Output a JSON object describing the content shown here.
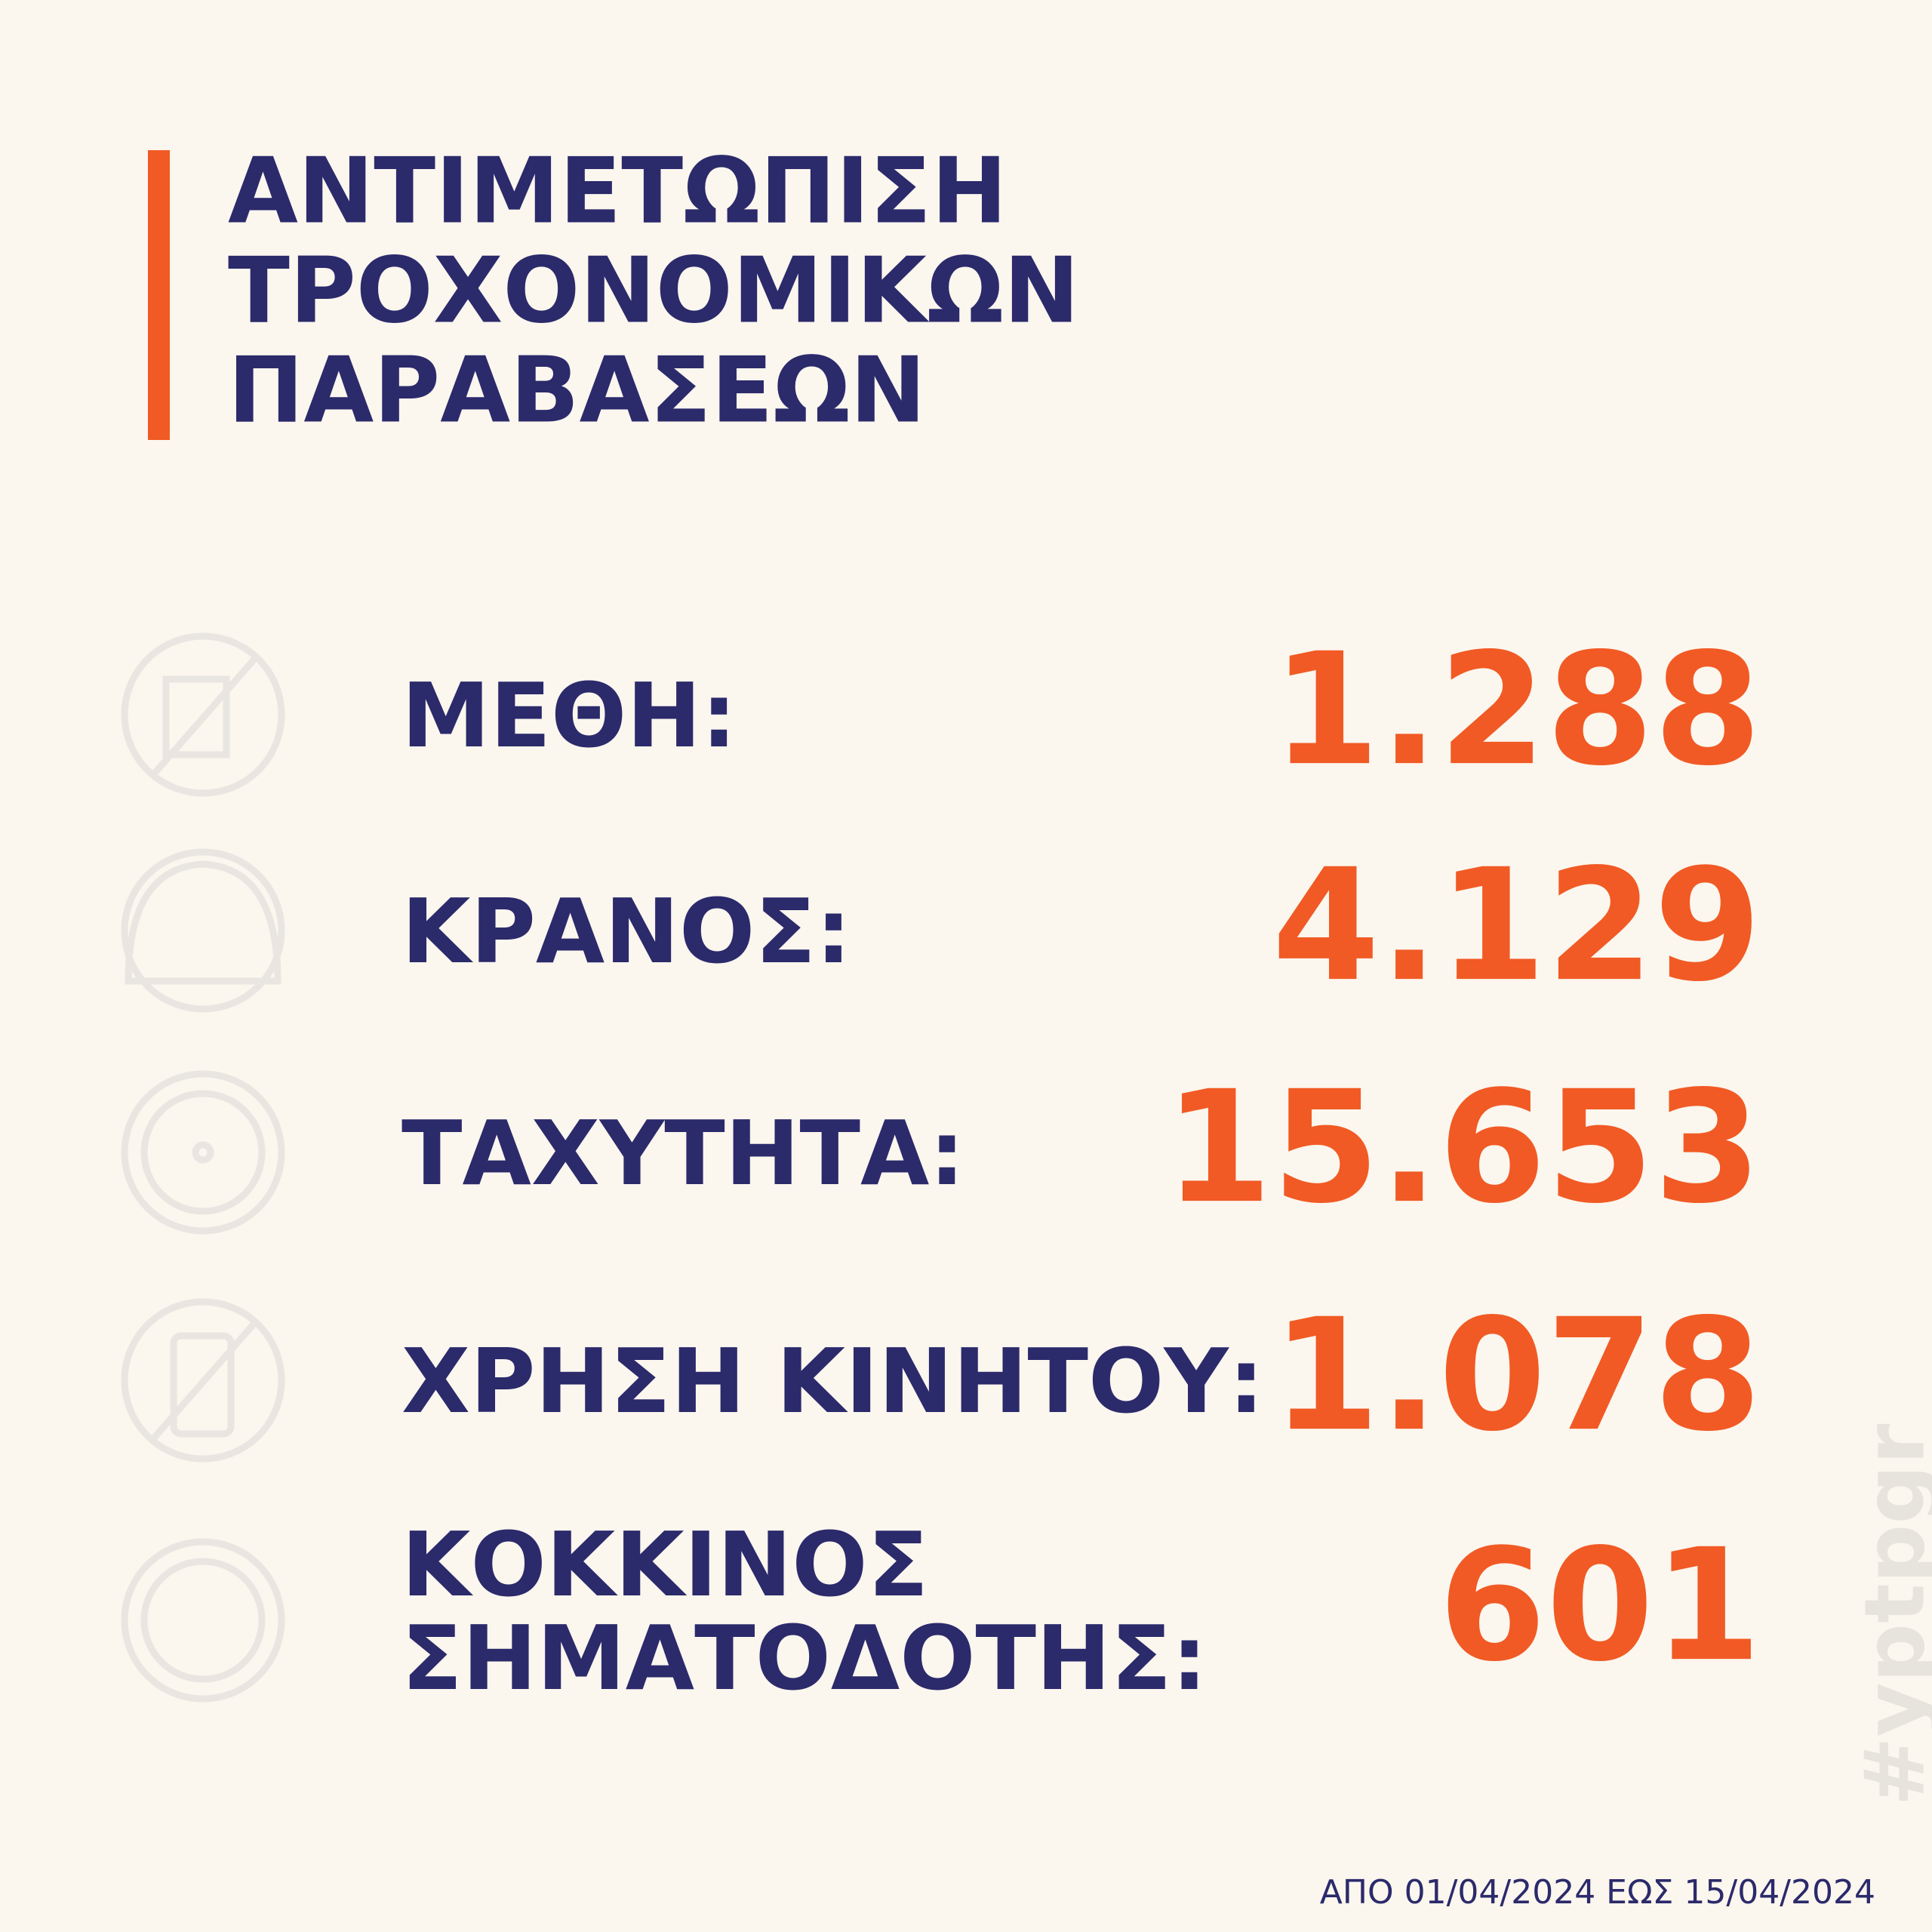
{
  "header": {
    "title": [
      "ΑΝΤΙΜΕΤΩΠΙΣΗ",
      "ΤΡΟΧΟΝΟΜΙΚΩΝ",
      "ΠΑΡΑΒΑΣΕΩΝ"
    ]
  },
  "items": [
    {
      "label": [
        "ΜΕΘΗ:"
      ],
      "value": "1.288"
    },
    {
      "label": [
        "ΚΡΑΝΟΣ:"
      ],
      "value": "4.129"
    },
    {
      "label": [
        "ΤΑΧΥΤΗΤΑ:"
      ],
      "value": "15.653"
    },
    {
      "label": [
        "ΧΡΗΣΗ ΚΙΝΗΤΟΥ:"
      ],
      "value": "1.078"
    },
    {
      "label": [
        "ΚΟΚΚΙΝΟΣ",
        "ΣΗΜΑΤΟΔΟΤΗΣ:"
      ],
      "value": "601"
    }
  ],
  "footer": "ΑΠΟ 01/04/2024 ΕΩΣ 15/04/2024",
  "watermark": "#yptpgr"
}
